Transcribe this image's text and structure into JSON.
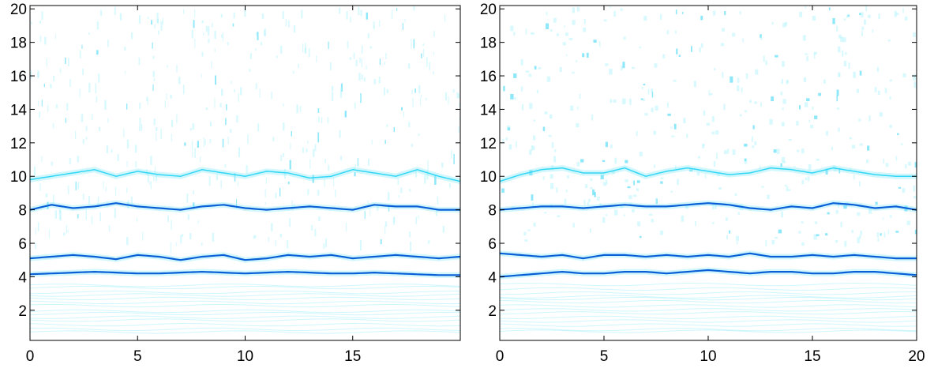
{
  "chart_data": [
    {
      "type": "heatmap",
      "panel": "left",
      "colormap": [
        "#ffffff",
        "#00e5ff",
        "#0044cc"
      ],
      "xlim": [
        0,
        20
      ],
      "ylim": [
        0.2,
        20.2
      ],
      "xticks": [
        0,
        5,
        10,
        15
      ],
      "xtick_labels": [
        "0",
        "5",
        "10",
        "15"
      ],
      "yticks": [
        2,
        4,
        6,
        8,
        10,
        12,
        14,
        16,
        18,
        20
      ],
      "ytick_labels": [
        "2",
        "4",
        "6",
        "8",
        "10",
        "12",
        "14",
        "16",
        "18",
        "20"
      ],
      "grid": false,
      "ridges": [
        {
          "x": [
            0,
            1,
            2,
            3,
            4,
            5,
            6,
            7,
            8,
            9,
            10,
            11,
            12,
            13,
            14,
            15,
            16,
            17,
            18,
            19,
            20
          ],
          "y": [
            4.15,
            4.2,
            4.25,
            4.3,
            4.25,
            4.2,
            4.2,
            4.25,
            4.3,
            4.25,
            4.2,
            4.25,
            4.3,
            4.25,
            4.2,
            4.2,
            4.25,
            4.2,
            4.15,
            4.1,
            4.1
          ],
          "intensity": 0.9
        },
        {
          "x": [
            0,
            1,
            2,
            3,
            4,
            5,
            6,
            7,
            8,
            9,
            10,
            11,
            12,
            13,
            14,
            15,
            16,
            17,
            18,
            19,
            20
          ],
          "y": [
            5.1,
            5.2,
            5.3,
            5.2,
            5.05,
            5.3,
            5.2,
            5.0,
            5.2,
            5.3,
            5.0,
            5.1,
            5.3,
            5.2,
            5.3,
            5.1,
            5.2,
            5.3,
            5.2,
            5.1,
            5.2
          ],
          "intensity": 0.95
        },
        {
          "x": [
            0,
            1,
            2,
            3,
            4,
            5,
            6,
            7,
            8,
            9,
            10,
            11,
            12,
            13,
            14,
            15,
            16,
            17,
            18,
            19,
            20
          ],
          "y": [
            8.0,
            8.3,
            8.1,
            8.2,
            8.4,
            8.2,
            8.1,
            8.0,
            8.2,
            8.3,
            8.1,
            8.0,
            8.1,
            8.2,
            8.1,
            8.0,
            8.3,
            8.2,
            8.2,
            8.0,
            8.0
          ],
          "intensity": 0.85
        },
        {
          "x": [
            0,
            1,
            2,
            3,
            4,
            5,
            6,
            7,
            8,
            9,
            10,
            11,
            12,
            13,
            14,
            15,
            16,
            17,
            18,
            19,
            20
          ],
          "y": [
            9.8,
            10.0,
            10.2,
            10.4,
            10.0,
            10.3,
            10.1,
            10.0,
            10.4,
            10.2,
            10.0,
            10.3,
            10.2,
            9.9,
            10.0,
            10.4,
            10.2,
            10.0,
            10.4,
            10.0,
            9.7
          ],
          "intensity": 0.4
        }
      ]
    },
    {
      "type": "heatmap",
      "panel": "right",
      "colormap": [
        "#ffffff",
        "#00e5ff",
        "#0044cc"
      ],
      "xlim": [
        0,
        20
      ],
      "ylim": [
        0.2,
        20.2
      ],
      "xticks": [
        0,
        5,
        10,
        15,
        20
      ],
      "xtick_labels": [
        "0",
        "5",
        "10",
        "15",
        "20"
      ],
      "yticks": [
        2,
        4,
        6,
        8,
        10,
        12,
        14,
        16,
        18,
        20
      ],
      "ytick_labels": [
        "2",
        "4",
        "6",
        "8",
        "10",
        "12",
        "14",
        "16",
        "18",
        "20"
      ],
      "grid": false,
      "ridges": [
        {
          "x": [
            0,
            1,
            2,
            3,
            4,
            5,
            6,
            7,
            8,
            9,
            10,
            11,
            12,
            13,
            14,
            15,
            16,
            17,
            18,
            19,
            20
          ],
          "y": [
            4.0,
            4.1,
            4.2,
            4.3,
            4.2,
            4.2,
            4.3,
            4.3,
            4.2,
            4.3,
            4.4,
            4.3,
            4.2,
            4.3,
            4.3,
            4.2,
            4.2,
            4.3,
            4.3,
            4.2,
            4.1
          ],
          "intensity": 0.85
        },
        {
          "x": [
            0,
            1,
            2,
            3,
            4,
            5,
            6,
            7,
            8,
            9,
            10,
            11,
            12,
            13,
            14,
            15,
            16,
            17,
            18,
            19,
            20
          ],
          "y": [
            5.4,
            5.3,
            5.2,
            5.3,
            5.1,
            5.3,
            5.3,
            5.2,
            5.3,
            5.2,
            5.3,
            5.2,
            5.4,
            5.2,
            5.2,
            5.3,
            5.2,
            5.3,
            5.2,
            5.1,
            5.1
          ],
          "intensity": 0.9
        },
        {
          "x": [
            0,
            1,
            2,
            3,
            4,
            5,
            6,
            7,
            8,
            9,
            10,
            11,
            12,
            13,
            14,
            15,
            16,
            17,
            18,
            19,
            20
          ],
          "y": [
            8.0,
            8.1,
            8.2,
            8.2,
            8.1,
            8.2,
            8.3,
            8.2,
            8.2,
            8.3,
            8.4,
            8.3,
            8.1,
            8.0,
            8.2,
            8.1,
            8.4,
            8.3,
            8.1,
            8.2,
            8.0
          ],
          "intensity": 0.85
        },
        {
          "x": [
            0,
            1,
            2,
            3,
            4,
            5,
            6,
            7,
            8,
            9,
            10,
            11,
            12,
            13,
            14,
            15,
            16,
            17,
            18,
            19,
            20
          ],
          "y": [
            9.7,
            10.1,
            10.4,
            10.5,
            10.2,
            10.2,
            10.5,
            10.0,
            10.3,
            10.5,
            10.3,
            10.1,
            10.2,
            10.5,
            10.4,
            10.2,
            10.5,
            10.3,
            10.1,
            10.0,
            10.0
          ],
          "intensity": 0.35
        }
      ]
    }
  ]
}
